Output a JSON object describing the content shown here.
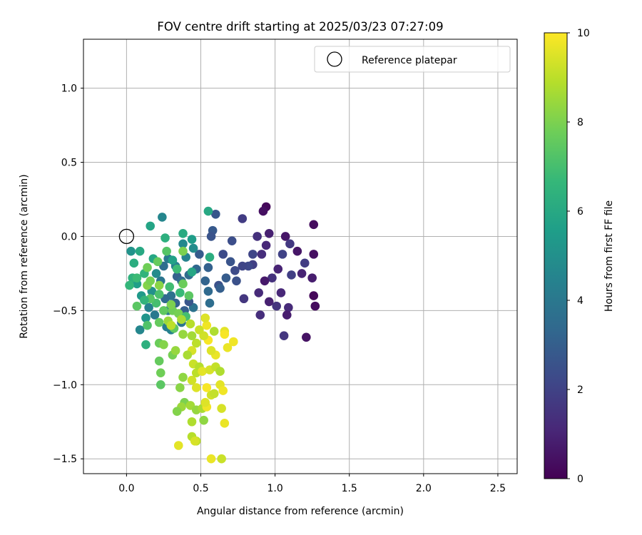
{
  "chart_data": {
    "type": "scatter",
    "title": "FOV centre drift starting at 2025/03/23 07:27:09",
    "xlabel": "Angular distance from reference (arcmin)",
    "ylabel": "Rotation from reference (arcmin)",
    "xlim": [
      -0.29,
      2.63
    ],
    "ylim": [
      -1.6,
      1.33
    ],
    "xticks": [
      0.0,
      0.5,
      1.0,
      1.5,
      2.0,
      2.5
    ],
    "xtick_labels": [
      "0.0",
      "0.5",
      "1.0",
      "1.5",
      "2.0",
      "2.5"
    ],
    "yticks": [
      1.0,
      0.5,
      0.0,
      -0.5,
      -1.0,
      -1.5
    ],
    "ytick_labels": [
      "1.0",
      "0.5",
      "0.0",
      "−0.5",
      "−1.0",
      "−1.5"
    ],
    "grid": true,
    "legend": {
      "position": "top-right",
      "entries": [
        "Reference platepar"
      ]
    },
    "colorbar": {
      "label": "Hours from first FF file",
      "range": [
        0,
        10
      ],
      "ticks": [
        0,
        2,
        4,
        6,
        8,
        10
      ],
      "tick_labels": [
        "0",
        "2",
        "4",
        "6",
        "8",
        "10"
      ],
      "colormap": [
        "#440154",
        "#482878",
        "#3e4989",
        "#31688e",
        "#26828e",
        "#1f9e89",
        "#35b779",
        "#6ece58",
        "#b5de2b",
        "#fde725"
      ]
    },
    "reference_point": {
      "x": 0.0,
      "y": 0.0
    },
    "series": [
      {
        "color_by": "Hours from first FF file",
        "points": [
          {
            "x": 0.94,
            "y": 0.2,
            "c": 0.2
          },
          {
            "x": 0.92,
            "y": 0.17,
            "c": 0.4
          },
          {
            "x": 1.26,
            "y": 0.08,
            "c": 0.3
          },
          {
            "x": 1.07,
            "y": 0.0,
            "c": 0.6
          },
          {
            "x": 1.21,
            "y": -0.68,
            "c": 0.5
          },
          {
            "x": 1.26,
            "y": -0.4,
            "c": 0.2
          },
          {
            "x": 1.27,
            "y": -0.47,
            "c": 0.3
          },
          {
            "x": 1.25,
            "y": -0.28,
            "c": 0.8
          },
          {
            "x": 1.26,
            "y": -0.12,
            "c": 0.4
          },
          {
            "x": 1.15,
            "y": -0.1,
            "c": 0.6
          },
          {
            "x": 1.18,
            "y": -0.25,
            "c": 1.0
          },
          {
            "x": 1.09,
            "y": -0.48,
            "c": 1.2
          },
          {
            "x": 1.08,
            "y": -0.53,
            "c": 0.8
          },
          {
            "x": 1.06,
            "y": -0.67,
            "c": 1.6
          },
          {
            "x": 0.96,
            "y": 0.02,
            "c": 0.9
          },
          {
            "x": 0.94,
            "y": -0.06,
            "c": 1.1
          },
          {
            "x": 0.91,
            "y": -0.12,
            "c": 1.3
          },
          {
            "x": 1.02,
            "y": -0.22,
            "c": 1.0
          },
          {
            "x": 0.98,
            "y": -0.28,
            "c": 1.4
          },
          {
            "x": 0.93,
            "y": -0.3,
            "c": 0.7
          },
          {
            "x": 1.04,
            "y": -0.38,
            "c": 1.1
          },
          {
            "x": 0.89,
            "y": -0.38,
            "c": 1.2
          },
          {
            "x": 0.96,
            "y": -0.44,
            "c": 0.9
          },
          {
            "x": 1.01,
            "y": -0.47,
            "c": 1.5
          },
          {
            "x": 0.9,
            "y": -0.53,
            "c": 1.3
          },
          {
            "x": 1.1,
            "y": -0.05,
            "c": 1.7
          },
          {
            "x": 1.2,
            "y": -0.18,
            "c": 1.8
          },
          {
            "x": 1.11,
            "y": -0.26,
            "c": 1.9
          },
          {
            "x": 1.05,
            "y": -0.12,
            "c": 2.0
          },
          {
            "x": 0.85,
            "y": -0.12,
            "c": 2.1
          },
          {
            "x": 0.85,
            "y": -0.19,
            "c": 1.9
          },
          {
            "x": 0.82,
            "y": -0.2,
            "c": 2.2
          },
          {
            "x": 0.88,
            "y": 0.0,
            "c": 1.4
          },
          {
            "x": 0.79,
            "y": -0.42,
            "c": 1.6
          },
          {
            "x": 0.78,
            "y": -0.2,
            "c": 2.1
          },
          {
            "x": 0.73,
            "y": -0.23,
            "c": 2.3
          },
          {
            "x": 0.74,
            "y": -0.3,
            "c": 2.5
          },
          {
            "x": 0.7,
            "y": -0.17,
            "c": 2.6
          },
          {
            "x": 0.71,
            "y": -0.03,
            "c": 2.4
          },
          {
            "x": 0.78,
            "y": 0.12,
            "c": 1.8
          },
          {
            "x": 0.6,
            "y": 0.15,
            "c": 2.7
          },
          {
            "x": 0.58,
            "y": 0.04,
            "c": 2.8
          },
          {
            "x": 0.57,
            "y": 0.0,
            "c": 2.6
          },
          {
            "x": 0.65,
            "y": -0.12,
            "c": 2.3
          },
          {
            "x": 0.67,
            "y": -0.28,
            "c": 2.9
          },
          {
            "x": 0.62,
            "y": -0.33,
            "c": 2.5
          },
          {
            "x": 0.63,
            "y": -0.35,
            "c": 3.0
          },
          {
            "x": 0.53,
            "y": -0.3,
            "c": 3.2
          },
          {
            "x": 0.55,
            "y": -0.37,
            "c": 3.4
          },
          {
            "x": 0.56,
            "y": -0.45,
            "c": 3.6
          },
          {
            "x": 0.55,
            "y": -0.21,
            "c": 3.1
          },
          {
            "x": 0.49,
            "y": -0.12,
            "c": 2.9
          },
          {
            "x": 0.47,
            "y": -0.22,
            "c": 3.3
          },
          {
            "x": 0.42,
            "y": -0.26,
            "c": 3.5
          },
          {
            "x": 0.45,
            "y": -0.48,
            "c": 3.8
          },
          {
            "x": 0.42,
            "y": -0.44,
            "c": 2.7
          },
          {
            "x": 0.39,
            "y": -0.5,
            "c": 3.0
          },
          {
            "x": 0.37,
            "y": -0.58,
            "c": 3.9
          },
          {
            "x": 0.33,
            "y": -0.45,
            "c": 3.2
          },
          {
            "x": 0.3,
            "y": -0.4,
            "c": 3.7
          },
          {
            "x": 0.28,
            "y": -0.5,
            "c": 4.0
          },
          {
            "x": 0.26,
            "y": -0.42,
            "c": 3.4
          },
          {
            "x": 0.27,
            "y": -0.61,
            "c": 4.2
          },
          {
            "x": 0.3,
            "y": -0.63,
            "c": 4.4
          },
          {
            "x": 0.23,
            "y": -0.3,
            "c": 3.9
          },
          {
            "x": 0.25,
            "y": -0.2,
            "c": 3.6
          },
          {
            "x": 0.28,
            "y": -0.15,
            "c": 4.1
          },
          {
            "x": 0.33,
            "y": -0.2,
            "c": 4.3
          },
          {
            "x": 0.34,
            "y": -0.27,
            "c": 3.1
          },
          {
            "x": 0.37,
            "y": -0.3,
            "c": 3.5
          },
          {
            "x": 0.4,
            "y": -0.14,
            "c": 4.5
          },
          {
            "x": 0.38,
            "y": -0.05,
            "c": 4.7
          },
          {
            "x": 0.45,
            "y": -0.08,
            "c": 4.9
          },
          {
            "x": 0.24,
            "y": 0.13,
            "c": 4.6
          },
          {
            "x": 0.2,
            "y": -0.25,
            "c": 4.8
          },
          {
            "x": 0.17,
            "y": -0.37,
            "c": 5.0
          },
          {
            "x": 0.15,
            "y": -0.48,
            "c": 4.4
          },
          {
            "x": 0.13,
            "y": -0.55,
            "c": 5.2
          },
          {
            "x": 0.09,
            "y": -0.63,
            "c": 4.6
          },
          {
            "x": 0.19,
            "y": -0.53,
            "c": 4.0
          },
          {
            "x": 0.1,
            "y": -0.4,
            "c": 5.4
          },
          {
            "x": 0.07,
            "y": -0.32,
            "c": 5.6
          },
          {
            "x": 0.03,
            "y": -0.1,
            "c": 5.1
          },
          {
            "x": 0.16,
            "y": 0.07,
            "c": 5.8
          },
          {
            "x": 0.09,
            "y": -0.1,
            "c": 6.0
          },
          {
            "x": 0.05,
            "y": -0.18,
            "c": 6.2
          },
          {
            "x": 0.04,
            "y": -0.28,
            "c": 6.4
          },
          {
            "x": 0.02,
            "y": -0.33,
            "c": 6.6
          },
          {
            "x": 0.07,
            "y": -0.28,
            "c": 6.8
          },
          {
            "x": 0.12,
            "y": -0.25,
            "c": 6.5
          },
          {
            "x": 0.18,
            "y": -0.15,
            "c": 5.9
          },
          {
            "x": 0.26,
            "y": -0.01,
            "c": 6.3
          },
          {
            "x": 0.31,
            "y": -0.16,
            "c": 5.7
          },
          {
            "x": 0.38,
            "y": 0.02,
            "c": 6.1
          },
          {
            "x": 0.44,
            "y": -0.02,
            "c": 5.5
          },
          {
            "x": 0.55,
            "y": 0.17,
            "c": 6.0
          },
          {
            "x": 0.56,
            "y": -0.14,
            "c": 6.2
          },
          {
            "x": 0.44,
            "y": -0.24,
            "c": 5.9
          },
          {
            "x": 0.36,
            "y": -0.38,
            "c": 6.7
          },
          {
            "x": 0.29,
            "y": -0.34,
            "c": 6.9
          },
          {
            "x": 0.22,
            "y": -0.39,
            "c": 7.1
          },
          {
            "x": 0.2,
            "y": -0.45,
            "c": 7.0
          },
          {
            "x": 0.16,
            "y": -0.42,
            "c": 7.3
          },
          {
            "x": 0.12,
            "y": -0.43,
            "c": 6.5
          },
          {
            "x": 0.07,
            "y": -0.47,
            "c": 7.4
          },
          {
            "x": 0.14,
            "y": -0.6,
            "c": 7.2
          },
          {
            "x": 0.13,
            "y": -0.73,
            "c": 6.3
          },
          {
            "x": 0.22,
            "y": -0.58,
            "c": 7.6
          },
          {
            "x": 0.25,
            "y": -0.5,
            "c": 7.5
          },
          {
            "x": 0.31,
            "y": -0.5,
            "c": 7.8
          },
          {
            "x": 0.35,
            "y": -0.52,
            "c": 7.9
          },
          {
            "x": 0.4,
            "y": -0.54,
            "c": 7.0
          },
          {
            "x": 0.42,
            "y": -0.4,
            "c": 7.4
          },
          {
            "x": 0.38,
            "y": -0.32,
            "c": 7.7
          },
          {
            "x": 0.34,
            "y": -0.22,
            "c": 6.8
          },
          {
            "x": 0.38,
            "y": -0.1,
            "c": 8.0
          },
          {
            "x": 0.27,
            "y": -0.1,
            "c": 7.3
          },
          {
            "x": 0.21,
            "y": -0.17,
            "c": 7.6
          },
          {
            "x": 0.14,
            "y": -0.21,
            "c": 7.8
          },
          {
            "x": 0.14,
            "y": -0.33,
            "c": 8.1
          },
          {
            "x": 0.16,
            "y": -0.3,
            "c": 7.9
          },
          {
            "x": 0.22,
            "y": -0.33,
            "c": 8.2
          },
          {
            "x": 0.3,
            "y": -0.46,
            "c": 8.0
          },
          {
            "x": 0.3,
            "y": -0.6,
            "c": 8.3
          },
          {
            "x": 0.32,
            "y": -0.62,
            "c": 7.5
          },
          {
            "x": 0.22,
            "y": -0.72,
            "c": 7.7
          },
          {
            "x": 0.25,
            "y": -0.73,
            "c": 8.1
          },
          {
            "x": 0.31,
            "y": -0.8,
            "c": 7.9
          },
          {
            "x": 0.33,
            "y": -0.77,
            "c": 8.4
          },
          {
            "x": 0.22,
            "y": -0.84,
            "c": 7.6
          },
          {
            "x": 0.23,
            "y": -0.92,
            "c": 7.8
          },
          {
            "x": 0.23,
            "y": -1.0,
            "c": 7.4
          },
          {
            "x": 0.38,
            "y": -0.95,
            "c": 8.3
          },
          {
            "x": 0.36,
            "y": -1.02,
            "c": 8.2
          },
          {
            "x": 0.39,
            "y": -1.12,
            "c": 8.0
          },
          {
            "x": 0.37,
            "y": -1.15,
            "c": 8.5
          },
          {
            "x": 0.34,
            "y": -1.18,
            "c": 8.1
          },
          {
            "x": 0.43,
            "y": -1.14,
            "c": 8.6
          },
          {
            "x": 0.47,
            "y": -1.17,
            "c": 8.4
          },
          {
            "x": 0.51,
            "y": -1.16,
            "c": 8.7
          },
          {
            "x": 0.44,
            "y": -1.25,
            "c": 8.8
          },
          {
            "x": 0.52,
            "y": -1.24,
            "c": 8.3
          },
          {
            "x": 0.44,
            "y": -1.35,
            "c": 8.9
          },
          {
            "x": 0.47,
            "y": -1.38,
            "c": 9.0
          },
          {
            "x": 0.35,
            "y": -1.41,
            "c": 9.6
          },
          {
            "x": 0.46,
            "y": -1.38,
            "c": 9.4
          },
          {
            "x": 0.57,
            "y": -1.5,
            "c": 9.7
          },
          {
            "x": 0.64,
            "y": -1.5,
            "c": 9.2
          },
          {
            "x": 0.54,
            "y": -1.15,
            "c": 9.8
          },
          {
            "x": 0.53,
            "y": -1.12,
            "c": 9.5
          },
          {
            "x": 0.57,
            "y": -1.07,
            "c": 9.3
          },
          {
            "x": 0.54,
            "y": -1.02,
            "c": 9.9
          },
          {
            "x": 0.59,
            "y": -1.06,
            "c": 9.1
          },
          {
            "x": 0.63,
            "y": -1.0,
            "c": 9.6
          },
          {
            "x": 0.65,
            "y": -1.04,
            "c": 9.8
          },
          {
            "x": 0.64,
            "y": -1.16,
            "c": 9.4
          },
          {
            "x": 0.66,
            "y": -1.26,
            "c": 9.7
          },
          {
            "x": 0.47,
            "y": -1.02,
            "c": 9.5
          },
          {
            "x": 0.44,
            "y": -0.97,
            "c": 9.3
          },
          {
            "x": 0.47,
            "y": -0.92,
            "c": 9.0
          },
          {
            "x": 0.45,
            "y": -0.86,
            "c": 9.2
          },
          {
            "x": 0.49,
            "y": -0.88,
            "c": 8.9
          },
          {
            "x": 0.51,
            "y": -0.91,
            "c": 9.6
          },
          {
            "x": 0.56,
            "y": -0.9,
            "c": 9.4
          },
          {
            "x": 0.6,
            "y": -0.88,
            "c": 9.1
          },
          {
            "x": 0.63,
            "y": -0.91,
            "c": 8.8
          },
          {
            "x": 0.6,
            "y": -0.8,
            "c": 9.7
          },
          {
            "x": 0.57,
            "y": -0.77,
            "c": 9.5
          },
          {
            "x": 0.55,
            "y": -0.7,
            "c": 9.9
          },
          {
            "x": 0.52,
            "y": -0.67,
            "c": 9.3
          },
          {
            "x": 0.47,
            "y": -0.72,
            "c": 9.0
          },
          {
            "x": 0.44,
            "y": -0.77,
            "c": 9.4
          },
          {
            "x": 0.41,
            "y": -0.8,
            "c": 8.7
          },
          {
            "x": 0.44,
            "y": -0.67,
            "c": 8.6
          },
          {
            "x": 0.49,
            "y": -0.63,
            "c": 9.2
          },
          {
            "x": 0.54,
            "y": -0.6,
            "c": 9.8
          },
          {
            "x": 0.53,
            "y": -0.55,
            "c": 9.5
          },
          {
            "x": 0.59,
            "y": -0.64,
            "c": 8.8
          },
          {
            "x": 0.66,
            "y": -0.64,
            "c": 9.6
          },
          {
            "x": 0.66,
            "y": -0.66,
            "c": 9.9
          },
          {
            "x": 0.68,
            "y": -0.75,
            "c": 9.7
          },
          {
            "x": 0.72,
            "y": -0.71,
            "c": 9.8
          },
          {
            "x": 0.43,
            "y": -0.59,
            "c": 8.9
          },
          {
            "x": 0.38,
            "y": -0.66,
            "c": 8.4
          },
          {
            "x": 0.37,
            "y": -0.56,
            "c": 8.7
          },
          {
            "x": 0.28,
            "y": -0.57,
            "c": 8.5
          },
          {
            "x": 0.3,
            "y": -0.6,
            "c": 9.0
          }
        ]
      }
    ]
  }
}
